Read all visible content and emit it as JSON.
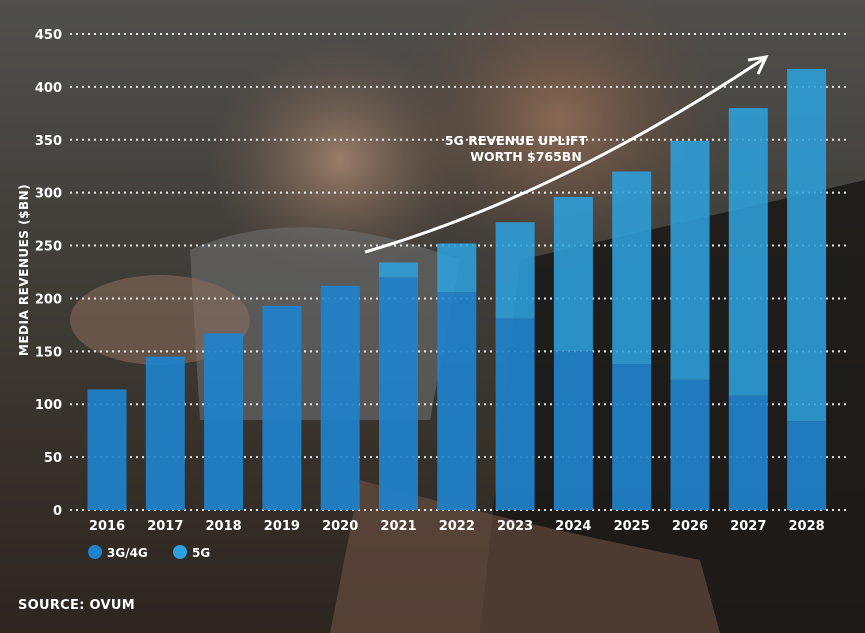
{
  "chart_data": {
    "type": "bar",
    "stacked": true,
    "title": "",
    "xlabel": "",
    "ylabel": "MEDIA REVENUES ($BN)",
    "ylim": [
      0,
      450
    ],
    "yticks": [
      0,
      50,
      100,
      150,
      200,
      250,
      300,
      350,
      400,
      450
    ],
    "grid": true,
    "categories": [
      "2016",
      "2017",
      "2018",
      "2019",
      "2020",
      "2021",
      "2022",
      "2023",
      "2024",
      "2025",
      "2026",
      "2027",
      "2028"
    ],
    "series": [
      {
        "name": "3G/4G",
        "color": "#1f82cc",
        "values": [
          114,
          145,
          167,
          193,
          212,
          220,
          206,
          181,
          150,
          138,
          123,
          108,
          84
        ]
      },
      {
        "name": "5G",
        "color": "#2da0dd",
        "values": [
          0,
          0,
          0,
          0,
          0,
          14,
          46,
          91,
          146,
          182,
          226,
          272,
          333
        ]
      }
    ],
    "annotation": {
      "lines": [
        "5G REVENUE UPLIFT",
        "WORTH $765BN"
      ]
    },
    "legend_position": "bottom-left"
  },
  "source": "SOURCE: OVUM"
}
